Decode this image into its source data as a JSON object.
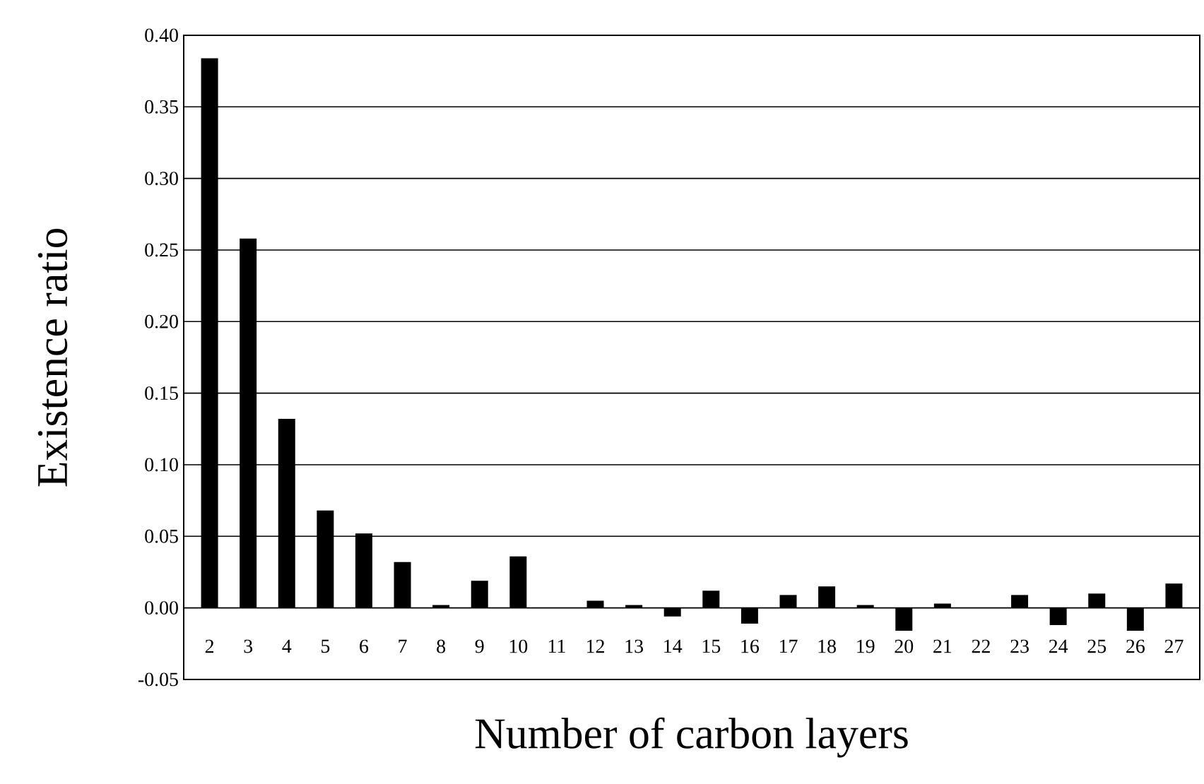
{
  "chart_data": {
    "type": "bar",
    "xlabel": "Number of carbon layers",
    "ylabel": "Existence ratio",
    "categories": [
      "2",
      "3",
      "4",
      "5",
      "6",
      "7",
      "8",
      "9",
      "10",
      "11",
      "12",
      "13",
      "14",
      "15",
      "16",
      "17",
      "18",
      "19",
      "20",
      "21",
      "22",
      "23",
      "24",
      "25",
      "26",
      "27"
    ],
    "values": [
      0.384,
      0.258,
      0.132,
      0.068,
      0.052,
      0.032,
      0.002,
      0.019,
      0.036,
      0,
      0.005,
      0.002,
      -0.006,
      0.012,
      -0.011,
      0.009,
      0.015,
      0.002,
      -0.016,
      0.003,
      0,
      0.009,
      -0.012,
      0.01,
      -0.016,
      0.017
    ],
    "color": "#000000",
    "ylim": [
      -0.05,
      0.4
    ],
    "yticks": [
      {
        "value": -0.05,
        "label": "-0.05"
      },
      {
        "value": 0,
        "label": "0.00"
      },
      {
        "value": 0.05,
        "label": "0.05"
      },
      {
        "value": 0.1,
        "label": "0.10"
      },
      {
        "value": 0.15,
        "label": "0.15"
      },
      {
        "value": 0.2,
        "label": "0.20"
      },
      {
        "value": 0.25,
        "label": "0.25"
      },
      {
        "value": 0.3,
        "label": "0.30"
      },
      {
        "value": 0.35,
        "label": "0.35"
      },
      {
        "value": 0.4,
        "label": "0.40"
      }
    ],
    "grid": "y"
  }
}
